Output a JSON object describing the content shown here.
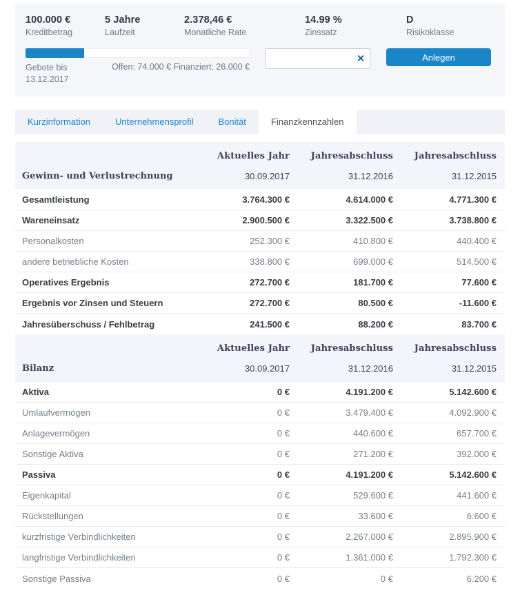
{
  "summary": {
    "stats": [
      {
        "value": "100.000 €",
        "label": "Kreditbetrag"
      },
      {
        "value": "5 Jahre",
        "label": "Laufzeit"
      },
      {
        "value": "2.378,46 €",
        "label": "Monatliche Rate"
      },
      {
        "value": "14.99 %",
        "label": "Zinssatz"
      },
      {
        "value": "D",
        "label": "Risikoklasse"
      }
    ],
    "funding": {
      "progress_percent": 26,
      "bids_until_label": "Gebote bis",
      "bids_until_date": "13.12.2017",
      "status_text": "Offen: 74.000 € Finanziert: 26.000 €"
    },
    "bid": {
      "input_value": "",
      "clear_icon": "✕",
      "submit_label": "Anlegen"
    }
  },
  "tabs": [
    {
      "label": "Kurzinformation",
      "active": false
    },
    {
      "label": "Unternehmensprofil",
      "active": false
    },
    {
      "label": "Bonität",
      "active": false
    },
    {
      "label": "Finanzkennzahlen",
      "active": true
    }
  ],
  "table": {
    "sections": [
      {
        "column_headers": [
          "Aktuelles Jahr",
          "Jahresabschluss",
          "Jahresabschluss"
        ],
        "title": "Gewinn- und Verlustrechnung",
        "dates": [
          "30.09.2017",
          "31.12.2016",
          "31.12.2015"
        ],
        "rows": [
          {
            "label": "Gesamtleistung",
            "values": [
              "3.764.300 €",
              "4.614.000 €",
              "4.771.300 €"
            ],
            "bold": true
          },
          {
            "label": "Wareneinsatz",
            "values": [
              "2.900.500 €",
              "3.322.500 €",
              "3.738.800 €"
            ],
            "bold": true
          },
          {
            "label": "Personalkosten",
            "values": [
              "252.300 €",
              "410.800 €",
              "440.400 €"
            ],
            "bold": false
          },
          {
            "label": "andere betriebliche Kosten",
            "values": [
              "338.800 €",
              "699.000 €",
              "514.500 €"
            ],
            "bold": false
          },
          {
            "label": "Operatives Ergebnis",
            "values": [
              "272.700 €",
              "181.700 €",
              "77.600 €"
            ],
            "bold": true
          },
          {
            "label": "Ergebnis vor Zinsen und Steuern",
            "values": [
              "272.700 €",
              "80.500 €",
              "-11.600 €"
            ],
            "bold": true
          },
          {
            "label": "Jahresüberschuss / Fehlbetrag",
            "values": [
              "241.500 €",
              "88.200 €",
              "83.700 €"
            ],
            "bold": true
          }
        ]
      },
      {
        "column_headers": [
          "Aktuelles Jahr",
          "Jahresabschluss",
          "Jahresabschluss"
        ],
        "title": "Bilanz",
        "dates": [
          "30.09.2017",
          "31.12.2016",
          "31.12.2015"
        ],
        "rows": [
          {
            "label": "Aktiva",
            "values": [
              "0 €",
              "4.191.200 €",
              "5.142.600 €"
            ],
            "bold": true
          },
          {
            "label": "Umlaufvermögen",
            "values": [
              "0 €",
              "3.479.400 €",
              "4.092.900 €"
            ],
            "bold": false
          },
          {
            "label": "Anlagevermögen",
            "values": [
              "0 €",
              "440.600 €",
              "657.700 €"
            ],
            "bold": false
          },
          {
            "label": "Sonstige Aktiva",
            "values": [
              "0 €",
              "271.200 €",
              "392.000 €"
            ],
            "bold": false
          },
          {
            "label": "Passiva",
            "values": [
              "0 €",
              "4.191.200 €",
              "5.142.600 €"
            ],
            "bold": true
          },
          {
            "label": "Eigenkapital",
            "values": [
              "0 €",
              "529.600 €",
              "441.600 €"
            ],
            "bold": false
          },
          {
            "label": "Rückstellungen",
            "values": [
              "0 €",
              "33.600 €",
              "6.600 €"
            ],
            "bold": false
          },
          {
            "label": "kurzfristige Verbindlichkeiten",
            "values": [
              "0 €",
              "2.267.000 €",
              "2.895.900 €"
            ],
            "bold": false
          },
          {
            "label": "langfristige Verbindlichkeiten",
            "values": [
              "0 €",
              "1.361.000 €",
              "1.792.300 €"
            ],
            "bold": false
          },
          {
            "label": "Sonstige Passiva",
            "values": [
              "0 €",
              "0 €",
              "6.200 €"
            ],
            "bold": false
          }
        ]
      }
    ]
  },
  "colors": {
    "accent_blue": "#1a86c8",
    "dark_text": "#383d42",
    "serif_navy": "#3d4258",
    "muted_text": "#747e88",
    "card_bg": "#f4f6fa",
    "section_bg": "#f4f5fa",
    "row_border": "#e9eaf0"
  }
}
